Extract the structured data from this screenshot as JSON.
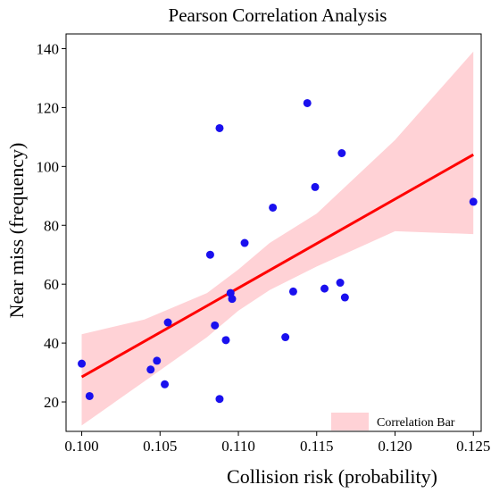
{
  "chart_data": {
    "type": "scatter",
    "title": "Pearson Correlation Analysis",
    "xlabel": "Collision risk (probability)",
    "ylabel": "Near miss  (frequency)",
    "xlim": [
      0.099,
      0.1255
    ],
    "ylim": [
      10,
      145
    ],
    "xticks": [
      0.1,
      0.105,
      0.11,
      0.115,
      0.12,
      0.125
    ],
    "xtick_labels": [
      "0.100",
      "0.105",
      "0.110",
      "0.115",
      "0.120",
      "0.125"
    ],
    "yticks": [
      20,
      40,
      60,
      80,
      100,
      120,
      140
    ],
    "ytick_labels": [
      "20",
      "40",
      "60",
      "80",
      "100",
      "120",
      "140"
    ],
    "grid": false,
    "legend": {
      "position": "bottom-right",
      "entries": [
        "Correlation Bar"
      ]
    },
    "colors": {
      "points": "#1a10ee",
      "line": "#ff0000",
      "band": "#ffd2d6"
    },
    "points": [
      {
        "x": 0.1,
        "y": 33
      },
      {
        "x": 0.1005,
        "y": 22
      },
      {
        "x": 0.1044,
        "y": 31
      },
      {
        "x": 0.1048,
        "y": 34
      },
      {
        "x": 0.1053,
        "y": 26
      },
      {
        "x": 0.1055,
        "y": 47
      },
      {
        "x": 0.1082,
        "y": 70
      },
      {
        "x": 0.1085,
        "y": 46
      },
      {
        "x": 0.1088,
        "y": 113
      },
      {
        "x": 0.1088,
        "y": 21
      },
      {
        "x": 0.1092,
        "y": 41
      },
      {
        "x": 0.1095,
        "y": 57
      },
      {
        "x": 0.1096,
        "y": 55
      },
      {
        "x": 0.1104,
        "y": 74
      },
      {
        "x": 0.1122,
        "y": 86
      },
      {
        "x": 0.113,
        "y": 42
      },
      {
        "x": 0.1135,
        "y": 57.5
      },
      {
        "x": 0.1144,
        "y": 121.5
      },
      {
        "x": 0.1149,
        "y": 93
      },
      {
        "x": 0.1155,
        "y": 58.5
      },
      {
        "x": 0.1165,
        "y": 60.5
      },
      {
        "x": 0.1166,
        "y": 104.5
      },
      {
        "x": 0.1168,
        "y": 55.5
      },
      {
        "x": 0.125,
        "y": 88
      }
    ],
    "regression": {
      "x": [
        0.1,
        0.125
      ],
      "y": [
        28.5,
        104
      ]
    },
    "band": {
      "x": [
        0.1,
        0.104,
        0.108,
        0.11,
        0.112,
        0.115,
        0.12,
        0.125
      ],
      "upper": [
        43,
        48,
        57,
        65,
        74,
        84,
        109,
        139
      ],
      "lower": [
        12,
        27,
        42,
        51,
        58,
        66,
        78,
        77
      ]
    }
  }
}
